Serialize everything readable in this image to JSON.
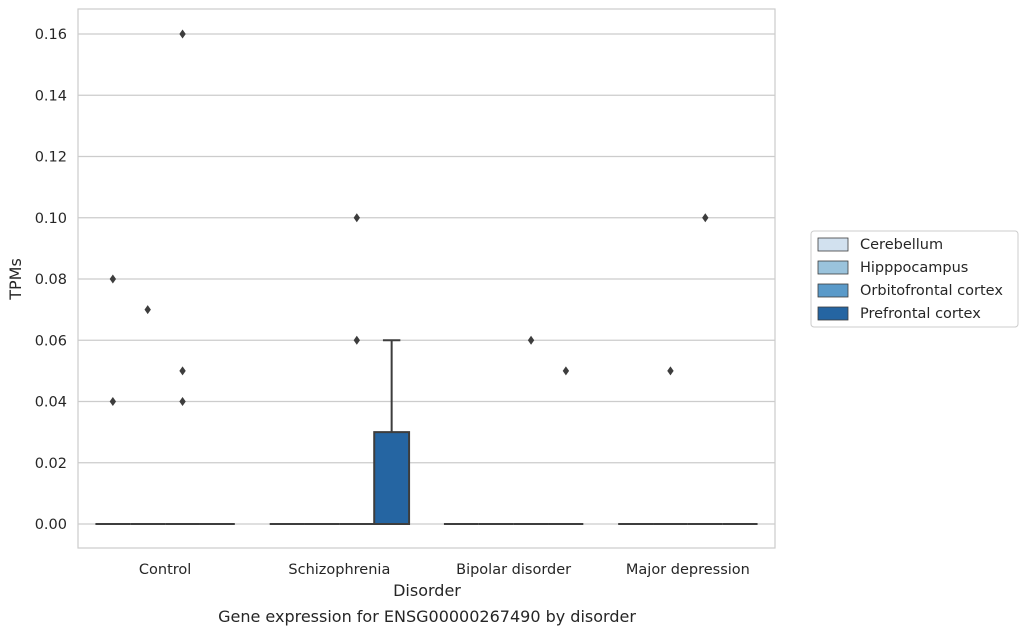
{
  "chart_data": {
    "type": "boxplot",
    "title": "",
    "caption": "Gene expression for ENSG00000267490 by disorder",
    "xlabel": "Disorder",
    "ylabel": "TPMs",
    "ylim": [
      -0.008,
      0.168
    ],
    "yticks": [
      "0.00",
      "0.02",
      "0.04",
      "0.06",
      "0.08",
      "0.10",
      "0.12",
      "0.14",
      "0.16"
    ],
    "grid": "horizontal",
    "legend_position": "right-outside",
    "categories": [
      "Control",
      "Schizophrenia",
      "Bipolar disorder",
      "Major depression"
    ],
    "series": [
      {
        "name": "Cerebellum",
        "color": "#d2e1ef",
        "boxes": [
          {
            "q1": 0,
            "median": 0,
            "q3": 0,
            "whisker_low": 0,
            "whisker_high": 0,
            "outliers": [
              0.04,
              0.08
            ]
          },
          {
            "q1": 0,
            "median": 0,
            "q3": 0,
            "whisker_low": 0,
            "whisker_high": 0,
            "outliers": []
          },
          {
            "q1": 0,
            "median": 0,
            "q3": 0,
            "whisker_low": 0,
            "whisker_high": 0,
            "outliers": []
          },
          {
            "q1": 0,
            "median": 0,
            "q3": 0,
            "whisker_low": 0,
            "whisker_high": 0,
            "outliers": []
          }
        ]
      },
      {
        "name": "Hipppocampus",
        "color": "#9ac3dc",
        "boxes": [
          {
            "q1": 0,
            "median": 0,
            "q3": 0,
            "whisker_low": 0,
            "whisker_high": 0,
            "outliers": [
              0.07
            ]
          },
          {
            "q1": 0,
            "median": 0,
            "q3": 0,
            "whisker_low": 0,
            "whisker_high": 0,
            "outliers": []
          },
          {
            "q1": 0,
            "median": 0,
            "q3": 0,
            "whisker_low": 0,
            "whisker_high": 0,
            "outliers": []
          },
          {
            "q1": 0,
            "median": 0,
            "q3": 0,
            "whisker_low": 0,
            "whisker_high": 0,
            "outliers": [
              0.05
            ]
          }
        ]
      },
      {
        "name": "Orbitofrontal cortex",
        "color": "#5a9ac9",
        "boxes": [
          {
            "q1": 0,
            "median": 0,
            "q3": 0,
            "whisker_low": 0,
            "whisker_high": 0,
            "outliers": [
              0.04,
              0.05,
              0.16
            ]
          },
          {
            "q1": 0,
            "median": 0,
            "q3": 0,
            "whisker_low": 0,
            "whisker_high": 0,
            "outliers": [
              0.06,
              0.1
            ]
          },
          {
            "q1": 0,
            "median": 0,
            "q3": 0,
            "whisker_low": 0,
            "whisker_high": 0,
            "outliers": [
              0.06
            ]
          },
          {
            "q1": 0,
            "median": 0,
            "q3": 0,
            "whisker_low": 0,
            "whisker_high": 0,
            "outliers": [
              0.1
            ]
          }
        ]
      },
      {
        "name": "Prefrontal cortex",
        "color": "#2565a2",
        "boxes": [
          {
            "q1": 0,
            "median": 0,
            "q3": 0,
            "whisker_low": 0,
            "whisker_high": 0,
            "outliers": []
          },
          {
            "q1": 0,
            "median": 0,
            "q3": 0.03,
            "whisker_low": 0,
            "whisker_high": 0.06,
            "outliers": []
          },
          {
            "q1": 0,
            "median": 0,
            "q3": 0,
            "whisker_low": 0,
            "whisker_high": 0,
            "outliers": [
              0.05
            ]
          },
          {
            "q1": 0,
            "median": 0,
            "q3": 0,
            "whisker_low": 0,
            "whisker_high": 0,
            "outliers": []
          }
        ]
      }
    ]
  }
}
